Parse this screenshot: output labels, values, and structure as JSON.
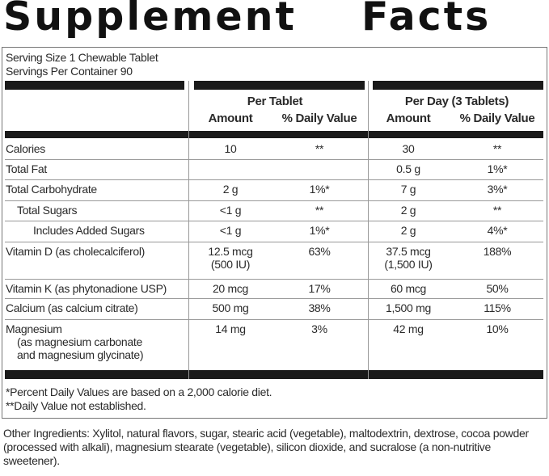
{
  "title": "Supplement Facts",
  "serving": [
    "Serving Size 1 Chewable Tablet",
    "Servings Per Container 90"
  ],
  "table": {
    "group_headers": [
      "Per Tablet",
      "Per Day (3 Tablets)"
    ],
    "column_headers": [
      "Amount",
      "% Daily Value",
      "Amount",
      "% Daily Value"
    ],
    "rows": [
      [
        [
          "Calories"
        ],
        [
          "10"
        ],
        [
          "**"
        ],
        [
          "30"
        ],
        [
          "**"
        ]
      ],
      [
        [
          "Total Fat"
        ],
        null,
        null,
        [
          "0.5 g"
        ],
        [
          "1%*"
        ]
      ],
      [
        [
          "Total Carbohydrate"
        ],
        [
          "2 g"
        ],
        [
          "1%*"
        ],
        [
          "7 g"
        ],
        [
          "3%*"
        ]
      ],
      [
        [
          "Total Sugars"
        ],
        [
          "<1 g"
        ],
        [
          "**"
        ],
        [
          "2 g"
        ],
        [
          "**"
        ]
      ],
      [
        [
          "Includes Added Sugars"
        ],
        [
          "<1 g"
        ],
        [
          "1%*"
        ],
        [
          "2 g"
        ],
        [
          "4%*"
        ]
      ],
      [
        [
          "Vitamin D (as cholecalciferol)"
        ],
        [
          "12.5 mcg",
          "(500 IU)"
        ],
        [
          "63%"
        ],
        [
          "37.5 mcg",
          "(1,500 IU)"
        ],
        [
          "188%"
        ]
      ],
      [
        [
          "Vitamin K (as phytonadione USP)"
        ],
        [
          "20 mcg"
        ],
        [
          "17%"
        ],
        [
          "60 mcg"
        ],
        [
          "50%"
        ]
      ],
      [
        [
          "Calcium (as calcium citrate)"
        ],
        [
          "500 mg"
        ],
        [
          "38%"
        ],
        [
          "1,500 mg"
        ],
        [
          "115%"
        ]
      ],
      [
        [
          "Magnesium",
          "(as magnesium carbonate",
          "and magnesium glycinate)"
        ],
        [
          "14 mg"
        ],
        [
          "3%"
        ],
        [
          "42 mg"
        ],
        [
          "10%"
        ]
      ]
    ]
  },
  "footnotes": [
    "*Percent Daily Values are based on a 2,000 calorie diet.",
    "**Daily Value not established."
  ],
  "other_ingredients": "Other Ingredients: Xylitol, natural flavors, sugar, stearic acid (vegetable), maltodextrin, dextrose, cocoa powder (processed with alkali), magnesium stearate (vegetable), silicon dioxide, and sucralose (a non-nutritive sweetener)."
}
